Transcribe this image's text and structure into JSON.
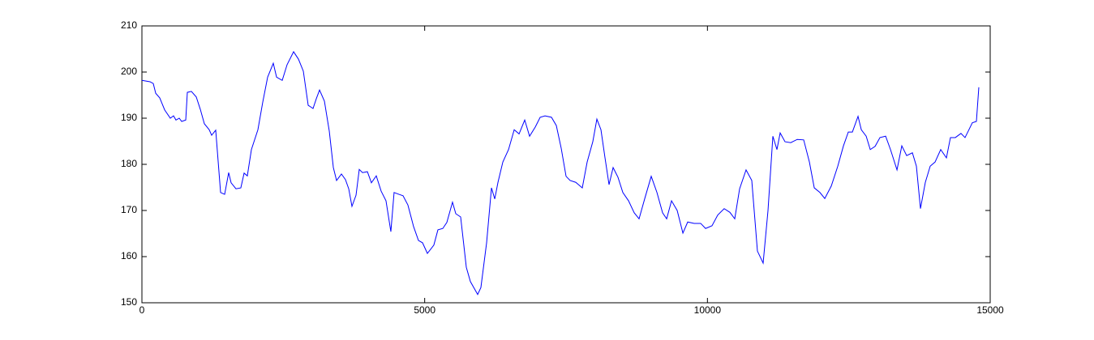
{
  "chart_data": {
    "type": "line",
    "x": [
      0,
      143,
      201,
      244,
      315,
      402,
      502,
      559,
      602,
      660,
      703,
      775,
      803,
      875,
      961,
      1033,
      1104,
      1190,
      1233,
      1305,
      1391,
      1463,
      1534,
      1577,
      1663,
      1749,
      1807,
      1864,
      1936,
      2051,
      2137,
      2223,
      2323,
      2381,
      2481,
      2567,
      2682,
      2768,
      2854,
      2940,
      3026,
      3083,
      3141,
      3227,
      3313,
      3385,
      3442,
      3528,
      3599,
      3657,
      3714,
      3786,
      3843,
      3901,
      3987,
      4058,
      4144,
      4230,
      4316,
      4402,
      4459,
      4545,
      4617,
      4703,
      4804,
      4890,
      4962,
      5048,
      5162,
      5234,
      5320,
      5392,
      5492,
      5550,
      5636,
      5736,
      5808,
      5937,
      5994,
      6095,
      6181,
      6239,
      6296,
      6382,
      6483,
      6583,
      6669,
      6769,
      6855,
      6956,
      7042,
      7128,
      7242,
      7328,
      7414,
      7500,
      7572,
      7672,
      7787,
      7873,
      7973,
      8045,
      8117,
      8189,
      8260,
      8332,
      8418,
      8504,
      8605,
      8705,
      8791,
      8892,
      9006,
      9107,
      9207,
      9279,
      9365,
      9465,
      9566,
      9651,
      9766,
      9881,
      9967,
      10081,
      10182,
      10296,
      10397,
      10483,
      10569,
      10683,
      10784,
      10884,
      10985,
      11071,
      11157,
      11229,
      11286,
      11372,
      11473,
      11588,
      11702,
      11803,
      11889,
      11989,
      12075,
      12190,
      12305,
      12405,
      12491,
      12563,
      12663,
      12721,
      12807,
      12879,
      12965,
      13051,
      13151,
      13237,
      13352,
      13437,
      13523,
      13624,
      13695,
      13767,
      13853,
      13939,
      14025,
      14125,
      14226,
      14297,
      14383,
      14483,
      14555,
      14612,
      14684,
      14756,
      14799
    ],
    "series": [
      {
        "color": "#0000ff",
        "values": [
          198.2,
          197.9,
          197.5,
          195.4,
          194.4,
          191.8,
          190,
          190.5,
          189.6,
          190,
          189.3,
          189.6,
          195.6,
          195.8,
          194.6,
          191.9,
          188.8,
          187.5,
          186.3,
          187.4,
          173.9,
          173.5,
          178.2,
          176,
          174.7,
          174.9,
          178.1,
          177.5,
          183.2,
          187.5,
          193.5,
          198.9,
          201.9,
          198.9,
          198.2,
          201.6,
          204.4,
          202.8,
          200.2,
          192.8,
          192.1,
          194.2,
          196.1,
          193.7,
          187.2,
          179.3,
          176.5,
          177.9,
          176.7,
          174.7,
          170.9,
          173.3,
          178.9,
          178.2,
          178.4,
          176,
          177.5,
          174.2,
          172.1,
          165.4,
          173.9,
          173.5,
          173.2,
          171.2,
          166.5,
          163.5,
          163,
          160.7,
          162.5,
          165.8,
          166.1,
          167.4,
          171.8,
          169.3,
          168.6,
          157.7,
          154.6,
          151.8,
          153.3,
          163,
          174.9,
          172.5,
          176.1,
          180.5,
          183.2,
          187.5,
          186.6,
          189.6,
          186.1,
          188.1,
          190.2,
          190.5,
          190.2,
          188.4,
          183.5,
          177.4,
          176.5,
          176.1,
          174.9,
          180.5,
          184.9,
          189.8,
          187.5,
          181.4,
          175.6,
          179.3,
          177.2,
          173.9,
          172.1,
          169.5,
          168.2,
          172.6,
          177.4,
          173.9,
          169.5,
          168.2,
          172.1,
          170,
          165.1,
          167.5,
          167.2,
          167.2,
          166.1,
          166.7,
          169,
          170.4,
          169.6,
          168.2,
          174.7,
          178.8,
          176.5,
          161.2,
          158.6,
          170,
          186.1,
          183.2,
          186.8,
          184.9,
          184.7,
          185.4,
          185.3,
          180.5,
          174.9,
          173.9,
          172.6,
          175.3,
          179.6,
          184,
          187,
          187,
          190.4,
          187.5,
          186.1,
          183.2,
          183.9,
          185.8,
          186.1,
          183.2,
          178.8,
          184,
          181.9,
          182.5,
          179.6,
          170.4,
          176.1,
          179.6,
          180.5,
          183.2,
          181.4,
          185.8,
          185.8,
          186.7,
          185.8,
          187.2,
          189,
          189.3,
          196.7
        ]
      }
    ],
    "xlim": [
      0,
      15000
    ],
    "xticks": [
      0,
      5000,
      10000,
      15000
    ],
    "ylim": [
      150,
      210
    ],
    "yticks": [
      150,
      160,
      170,
      180,
      190,
      200,
      210
    ]
  }
}
